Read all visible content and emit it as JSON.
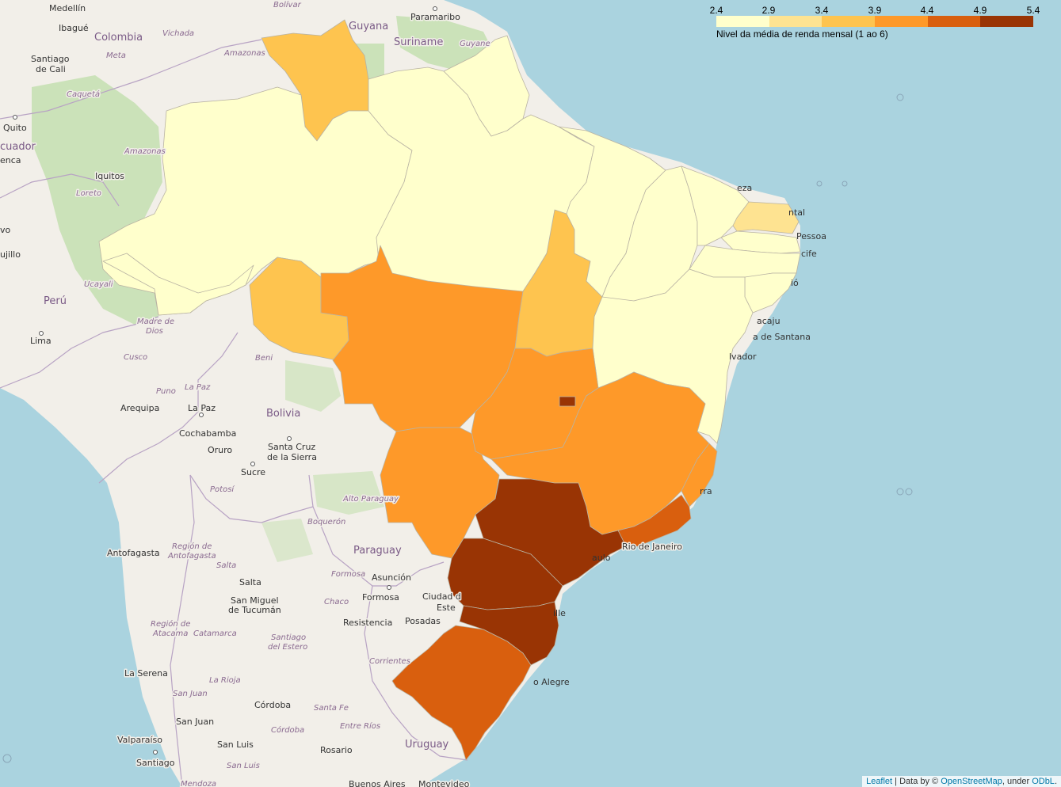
{
  "legend": {
    "ticks": [
      "2.4",
      "2.9",
      "3.4",
      "3.9",
      "4.4",
      "4.9",
      "5.4"
    ],
    "caption": "Nivel da média de renda mensal (1 ao 6)",
    "colors": [
      "#ffffcc",
      "#ffeda0",
      "#fed976",
      "#feb24c",
      "#fd8d3c",
      "#fc4e2a",
      "#e31a1c",
      "#b10026"
    ],
    "scale_colors": [
      "#ffffcc",
      "#fee391",
      "#fec44f",
      "#fe9929",
      "#d95f0e",
      "#993404"
    ]
  },
  "attribution": {
    "leaflet": "Leaflet",
    "separator": " | Data by © ",
    "osm": "OpenStreetMap",
    "under": ", under ",
    "odbl": "ODbL",
    "end": "."
  },
  "map_colors": {
    "sea": "#aad3df",
    "land": "#f2efe9",
    "forest": "#c4dfb0",
    "lowest": "#ffffcc",
    "light": "#fee391",
    "medium_low": "#fec44f",
    "medium": "#fe9929",
    "high": "#d95f0e",
    "highest": "#993404"
  },
  "labels": {
    "medellin": "Medellín",
    "ibague": "Ibagué",
    "colombia": "Colombia",
    "santiago_cali": "Santiago",
    "de_cali": "de Cali",
    "quito": "Quito",
    "ecuador": "cuador",
    "cuenca": "enca",
    "iquitos": "Iquitos",
    "loreto": "Loreto",
    "amazonas1": "Amazonas",
    "amazonas2": "Amazonas",
    "caqueta": "Caquetá",
    "vichada": "Vichada",
    "meta": "Meta",
    "bolivar": "Bolívar",
    "guyana": "Guyana",
    "paramaribo": "Paramaribo",
    "suriname": "Suriname",
    "guyane": "Guyane",
    "peru": "Perú",
    "lima": "Lima",
    "trujillo": "ujillo",
    "vo": "vo",
    "ucayali": "Ucayali",
    "madre": "Madre de",
    "dios": "Dios",
    "cusco": "Cusco",
    "puno": "Puno",
    "beni": "Beni",
    "la_paz_region": "La Paz",
    "arequipa": "Arequipa",
    "la_paz": "La Paz",
    "bolivia": "Bolivia",
    "cochabamba": "Cochabamba",
    "oruro": "Oruro",
    "santa_cruz1": "Santa Cruz",
    "santa_cruz2": "de la Sierra",
    "potosi": "Potosí",
    "sucre": "Sucre",
    "alto_paraguay": "Alto Paraguay",
    "boqueron": "Boquerón",
    "paraguay": "Paraguay",
    "antofagasta": "Antofagasta",
    "region_antofagasta1": "Región de",
    "region_antofagasta2": "Antofagasta",
    "salta_region": "Salta",
    "salta": "Salta",
    "formosa_region": "Formosa",
    "asuncion": "Asunción",
    "formosa": "Formosa",
    "san_miguel1": "San Miguel",
    "san_miguel2": "de Tucumán",
    "chaco": "Chaco",
    "resistencia": "Resistencia",
    "ciudad_del_este1": "Ciudad d",
    "ciudad_del_este2": "Este",
    "posadas": "Posadas",
    "region_atacama1": "Región de",
    "region_atacama2": "Atacama",
    "catamarca": "Catamarca",
    "santiago_estero1": "Santiago",
    "santiago_estero2": "del Estero",
    "corrientes": "Corrientes",
    "la_serena": "La Serena",
    "la_rioja": "La Rioja",
    "san_juan_region": "San Juan",
    "cordoba": "Córdoba",
    "santa_fe": "Santa Fe",
    "cordoba_region": "Córdoba",
    "entre_rios": "Entre Ríos",
    "san_juan": "San Juan",
    "valparaiso": "Valparaíso",
    "san_luis": "San Luis",
    "rosario": "Rosario",
    "uruguay": "Uruguay",
    "santiago": "Santiago",
    "san_luis_region": "San Luis",
    "mendoza": "Mendoza",
    "buenos_aires": "Buenos Aires",
    "montevideo": "Montevideo",
    "fortaleza": "eza",
    "natal": "ntal",
    "joao_pessoa": "Pessoa",
    "recife": "cife",
    "maceio": "ió",
    "aracaju": "acaju",
    "feira": "a de Santana",
    "salvador": "lvador",
    "vitoria": "rra",
    "rio": "Rio de Janeiro",
    "sao_paulo": "aulo",
    "joinville": "ille",
    "porto_alegre": "o Alegre"
  }
}
